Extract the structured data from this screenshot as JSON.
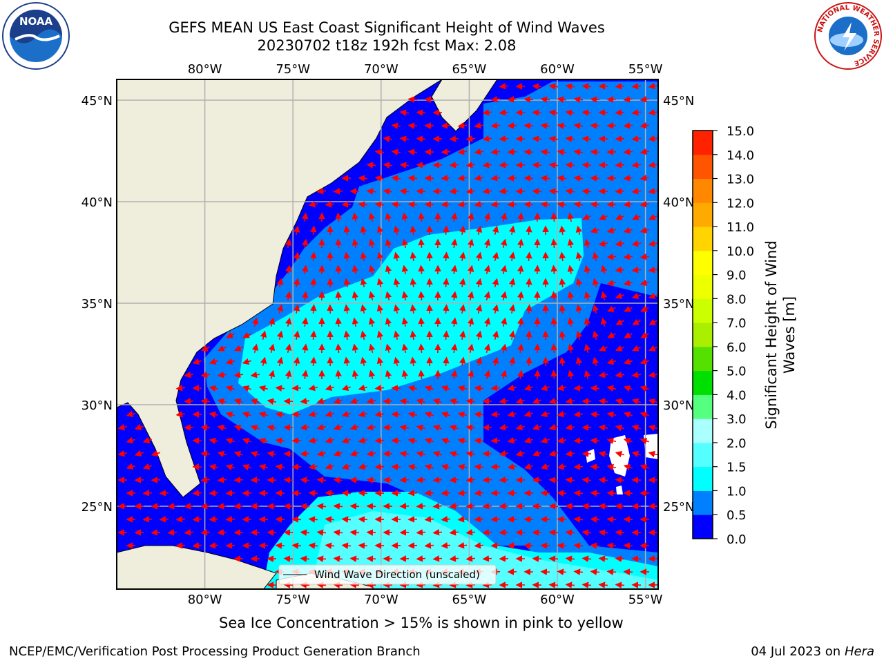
{
  "header": {
    "title_line1": "GEFS MEAN US East Coast Significant Height of Wind Waves",
    "title_line2": "20230702 t18z 192h fcst   Max: 2.08"
  },
  "map": {
    "lon_labels": [
      "80°W",
      "75°W",
      "70°W",
      "65°W",
      "60°W",
      "55°W"
    ],
    "lat_labels": [
      "45°N",
      "40°N",
      "35°N",
      "30°N",
      "25°N"
    ],
    "legend_label": "Wind Wave Direction (unscaled)",
    "colors": {
      "land": "#efeedc",
      "level_0": "#0000ff",
      "level_05": "#007fff",
      "level_10": "#00ffff",
      "level_15": "#55ffff",
      "level_20": "#aaffff",
      "arrow": "#ff0000",
      "grid": "#b0b0b0"
    }
  },
  "colorbar": {
    "label": "Significant Height of Wind Waves [m]",
    "ticks": [
      "0.0",
      "0.5",
      "1.0",
      "1.5",
      "2.0",
      "3.0",
      "4.0",
      "5.0",
      "6.0",
      "7.0",
      "8.0",
      "9.0",
      "10.0",
      "11.0",
      "12.0",
      "13.0",
      "14.0",
      "15.0"
    ],
    "colors": [
      "#0000ff",
      "#007fff",
      "#00ffff",
      "#55ffff",
      "#aaffff",
      "#55ff7f",
      "#00e000",
      "#55e000",
      "#aaee00",
      "#ccff00",
      "#eeff00",
      "#ffff00",
      "#ffd400",
      "#ffaa00",
      "#ff8800",
      "#ff5500",
      "#ff2200"
    ]
  },
  "footer": {
    "subtitle": "Sea Ice Concentration > 15% is shown in pink to yellow",
    "left": "NCEP/EMC/Verification Post Processing Product Generation Branch",
    "right_date": "04 Jul 2023 on ",
    "right_host": "Hera"
  },
  "logos": {
    "noaa": "NOAA",
    "nws_ring": "NATIONAL WEATHER SERVICE"
  }
}
